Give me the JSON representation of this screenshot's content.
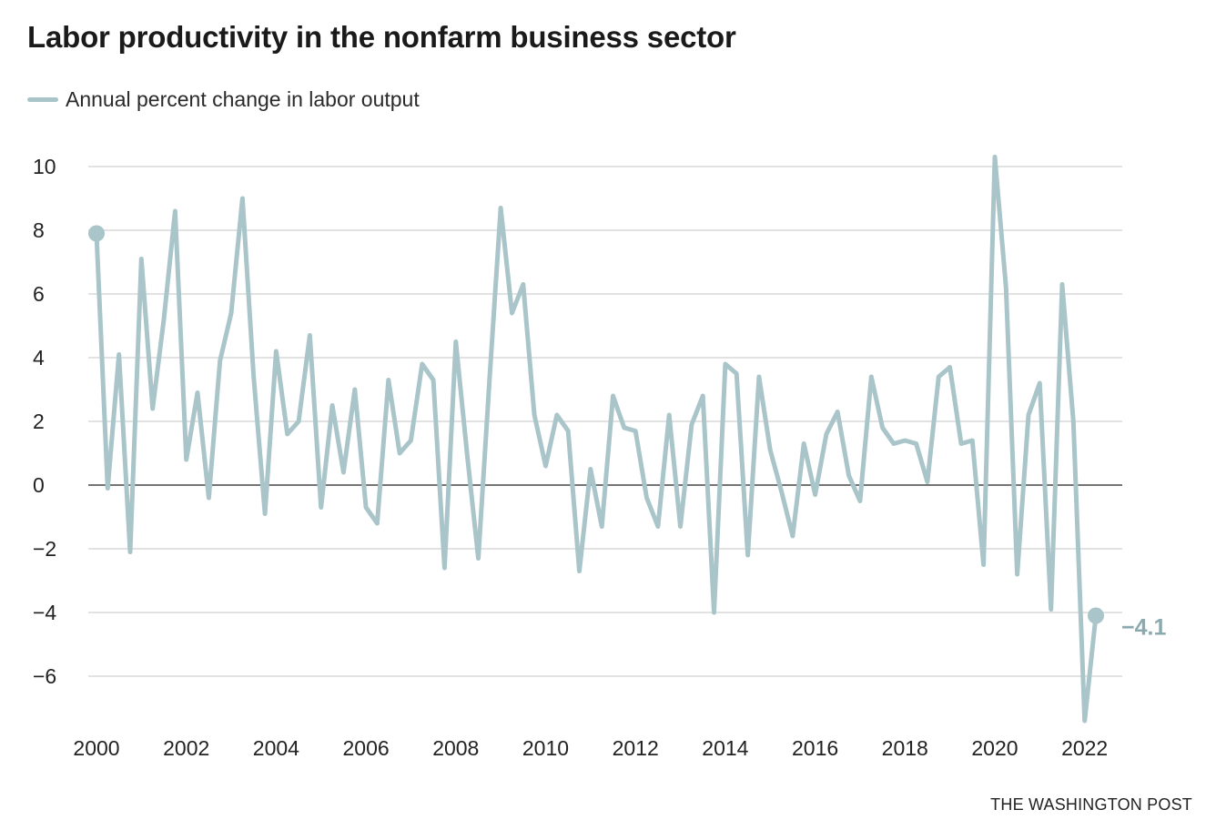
{
  "header": {
    "title": "Labor productivity in the nonfarm business sector"
  },
  "footer": {
    "credit": "THE WASHINGTON POST"
  },
  "colors": {
    "series": "#a9c5c9",
    "grid": "#d9d9d9",
    "zero_line": "#222222",
    "end_label": "#8aaaaf"
  },
  "chart_data": {
    "type": "line",
    "title": "Labor productivity in the nonfarm business sector",
    "xlabel": "",
    "ylabel": "",
    "xlim": [
      2000,
      2022.25
    ],
    "ylim": [
      -7.5,
      10.5
    ],
    "yticks": [
      10,
      8,
      6,
      4,
      2,
      0,
      -2,
      -4,
      -6
    ],
    "ytick_labels": [
      "10",
      "8",
      "6",
      "4",
      "2",
      "0",
      "−2",
      "−4",
      "−6"
    ],
    "xticks": [
      2000,
      2002,
      2004,
      2006,
      2008,
      2010,
      2012,
      2014,
      2016,
      2018,
      2020,
      2022
    ],
    "xtick_labels": [
      "2000",
      "2002",
      "2004",
      "2006",
      "2008",
      "2010",
      "2012",
      "2014",
      "2016",
      "2018",
      "2020",
      "2022"
    ],
    "grid": true,
    "legend_position": "top-left",
    "end_label": "−4.1",
    "series": [
      {
        "name": "Annual percent change in labor output",
        "x": [
          2000.0,
          2000.25,
          2000.5,
          2000.75,
          2001.0,
          2001.25,
          2001.5,
          2001.75,
          2002.0,
          2002.25,
          2002.5,
          2002.75,
          2003.0,
          2003.25,
          2003.5,
          2003.75,
          2004.0,
          2004.25,
          2004.5,
          2004.75,
          2005.0,
          2005.25,
          2005.5,
          2005.75,
          2006.0,
          2006.25,
          2006.5,
          2006.75,
          2007.0,
          2007.25,
          2007.5,
          2007.75,
          2008.0,
          2008.25,
          2008.5,
          2008.75,
          2009.0,
          2009.25,
          2009.5,
          2009.75,
          2010.0,
          2010.25,
          2010.5,
          2010.75,
          2011.0,
          2011.25,
          2011.5,
          2011.75,
          2012.0,
          2012.25,
          2012.5,
          2012.75,
          2013.0,
          2013.25,
          2013.5,
          2013.75,
          2014.0,
          2014.25,
          2014.5,
          2014.75,
          2015.0,
          2015.25,
          2015.5,
          2015.75,
          2016.0,
          2016.25,
          2016.5,
          2016.75,
          2017.0,
          2017.25,
          2017.5,
          2017.75,
          2018.0,
          2018.25,
          2018.5,
          2018.75,
          2019.0,
          2019.25,
          2019.5,
          2019.75,
          2020.0,
          2020.25,
          2020.5,
          2020.75,
          2021.0,
          2021.25,
          2021.5,
          2021.75,
          2022.0,
          2022.25
        ],
        "values": [
          7.9,
          -0.1,
          4.1,
          -2.1,
          7.1,
          2.4,
          5.2,
          8.6,
          0.8,
          2.9,
          -0.4,
          3.9,
          5.4,
          9.0,
          3.4,
          -0.9,
          4.2,
          1.6,
          2.0,
          4.7,
          -0.7,
          2.5,
          0.4,
          3.0,
          -0.7,
          -1.2,
          3.3,
          1.0,
          1.4,
          3.8,
          3.3,
          -2.6,
          4.5,
          1.0,
          -2.3,
          3.3,
          8.7,
          5.4,
          6.3,
          2.2,
          0.6,
          2.2,
          1.7,
          -2.7,
          0.5,
          -1.3,
          2.8,
          1.8,
          1.7,
          -0.4,
          -1.3,
          2.2,
          -1.3,
          1.9,
          2.8,
          -4.0,
          3.8,
          3.5,
          -2.2,
          3.4,
          1.1,
          -0.2,
          -1.6,
          1.3,
          -0.3,
          1.6,
          2.3,
          0.3,
          -0.5,
          3.4,
          1.8,
          1.3,
          1.4,
          1.3,
          0.1,
          3.4,
          3.7,
          1.3,
          1.4,
          -2.5,
          10.3,
          6.2,
          -2.8,
          2.2,
          3.2,
          -3.9,
          6.3,
          2.0,
          -7.4,
          -4.1
        ]
      }
    ]
  }
}
